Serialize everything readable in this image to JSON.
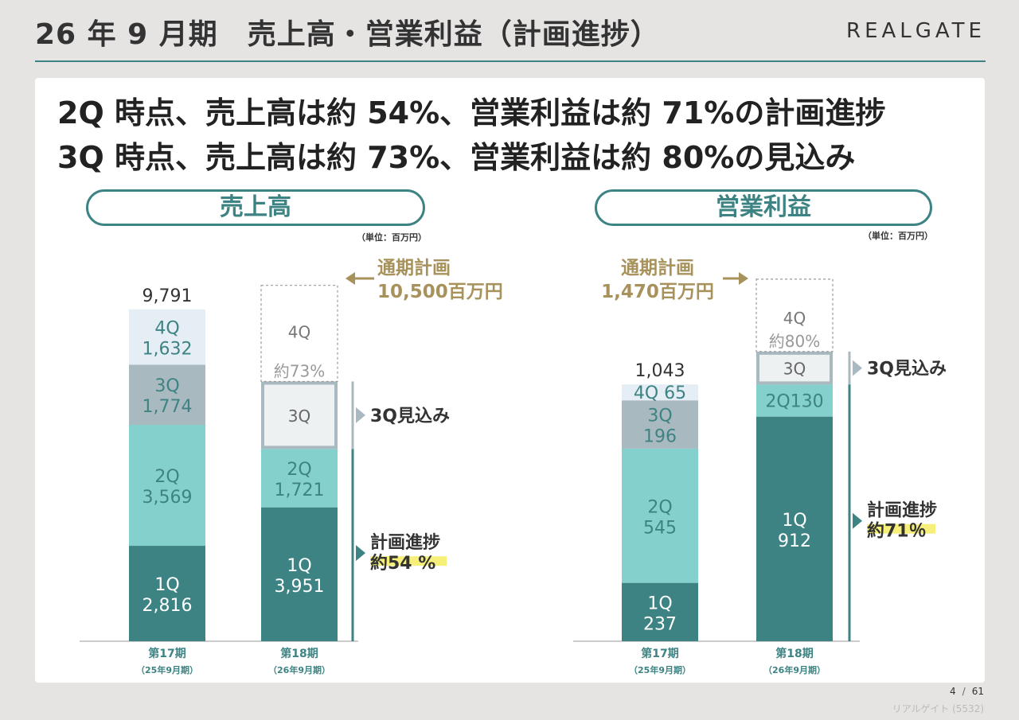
{
  "page": {
    "title": "26 年 9 月期　売上高・営業利益（計画進捗）",
    "logo": "REALGATE",
    "headline_1": "2Q 時点、売上高は約 54%、営業利益は約 71%の計画進捗",
    "headline_2": "3Q 時点、売上高は約 73%、営業利益は約 80%の見込み",
    "page_current": "4",
    "page_total": "61",
    "footer": "リアルゲイト (5532)"
  },
  "colors": {
    "q1": "#3e8383",
    "q2": "#84d0cc",
    "q3": "#a9b9c0",
    "q4": "#e4eef4",
    "plan": "#a8925c",
    "q3_forecast_fill": "#edf1f2",
    "highlight": "#f6f07a"
  },
  "chart_data": [
    {
      "type": "bar",
      "stacked": true,
      "title": "売上高",
      "unit": "（単位：百万円）",
      "categories": [
        "第17期",
        "第18期"
      ],
      "category_sublabels": [
        "（25年9月期）",
        "（26年9月期）"
      ],
      "series": [
        {
          "name": "1Q",
          "values": [
            2816,
            3951
          ]
        },
        {
          "name": "2Q",
          "values": [
            3569,
            1721
          ]
        },
        {
          "name": "3Q",
          "values": [
            1774,
            null
          ]
        },
        {
          "name": "4Q",
          "values": [
            1632,
            null
          ]
        }
      ],
      "total_labels": [
        "9,791",
        ""
      ],
      "plan_value": 10500,
      "plan_label_1": "通期計画",
      "plan_label_2": "10,500百万円",
      "forecast_3q_percent": 73,
      "forecast_3q_label": "約73%",
      "forecast_3q_text": "3Q見込み",
      "progress_label": "計画進捗",
      "progress_value": "約54 %",
      "plan_3q_box_label": "3Q",
      "plan_4q_box_label": "4Q",
      "data_labels": {
        "p17": {
          "q1": [
            "1Q",
            "2,816"
          ],
          "q2": [
            "2Q",
            "3,569"
          ],
          "q3": [
            "3Q",
            "1,774"
          ],
          "q4": [
            "4Q",
            "1,632"
          ]
        },
        "p18": {
          "q1": [
            "1Q",
            "3,951"
          ],
          "q2": [
            "2Q",
            "1,721"
          ]
        }
      }
    },
    {
      "type": "bar",
      "stacked": true,
      "title": "営業利益",
      "unit": "（単位：百万円）",
      "categories": [
        "第17期",
        "第18期"
      ],
      "category_sublabels": [
        "（25年9月期）",
        "（26年9月期）"
      ],
      "series": [
        {
          "name": "1Q",
          "values": [
            237,
            912
          ]
        },
        {
          "name": "2Q",
          "values": [
            545,
            130
          ]
        },
        {
          "name": "3Q",
          "values": [
            196,
            null
          ]
        },
        {
          "name": "4Q",
          "values": [
            65,
            null
          ]
        }
      ],
      "total_labels": [
        "1,043",
        ""
      ],
      "plan_value": 1470,
      "plan_label_1": "通期計画",
      "plan_label_2": "1,470百万円",
      "forecast_3q_percent": 80,
      "forecast_3q_label": "約80%",
      "forecast_3q_text": "3Q見込み",
      "progress_label": "計画進捗",
      "progress_value": "約71％",
      "plan_3q_box_label": "3Q",
      "plan_4q_box_label": "4Q",
      "data_labels": {
        "p17": {
          "q1": [
            "1Q",
            "237"
          ],
          "q2": [
            "2Q",
            "545"
          ],
          "q3": [
            "3Q",
            "196"
          ],
          "q4": [
            "4Q 65"
          ]
        },
        "p18": {
          "q1": [
            "1Q",
            "912"
          ],
          "q2": [
            "2Q130"
          ]
        }
      }
    }
  ]
}
